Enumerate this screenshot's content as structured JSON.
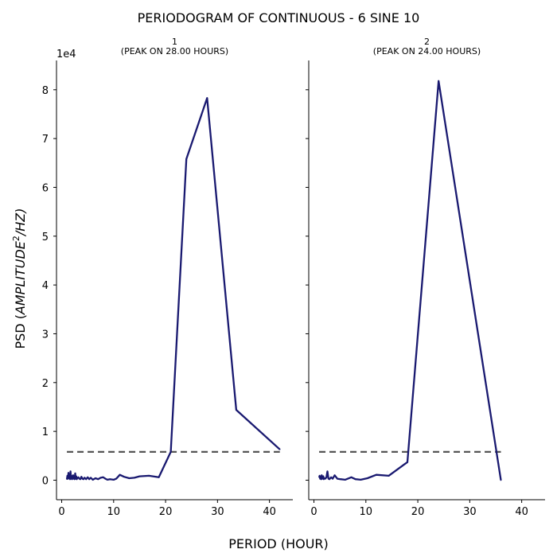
{
  "figure": {
    "title": "PERIODOGRAM OF CONTINUOUS - 6 SINE 10",
    "xlabel": "PERIOD (HOUR)",
    "ylabel_prefix": "PSD (",
    "ylabel_main": "AMPLITUDE",
    "ylabel_sup": "2",
    "ylabel_suffix": "/HZ)",
    "y_offset_label": "1e4"
  },
  "colors": {
    "line": "#191970",
    "threshold": "#555555",
    "axis": "#000000"
  },
  "chart_data": [
    {
      "type": "line",
      "title_line1": "1",
      "title_line2": "(PEAK ON 28.00 HOURS)",
      "xlim": [
        -1,
        44.5
      ],
      "ylim": [
        -4000,
        86000
      ],
      "xticks": [
        0,
        10,
        20,
        30,
        40
      ],
      "yticks": [
        0,
        10000,
        20000,
        30000,
        40000,
        50000,
        60000,
        70000,
        80000
      ],
      "ytick_labels": [
        "0",
        "1",
        "2",
        "3",
        "4",
        "5",
        "6",
        "7",
        "8"
      ],
      "show_yticklabels": true,
      "threshold": {
        "value": 5800,
        "x": [
          1,
          42
        ]
      },
      "x": [
        1.0,
        1.1,
        1.2,
        1.3,
        1.4,
        1.5,
        1.6,
        1.7,
        1.8,
        1.9,
        2.0,
        2.1,
        2.2,
        2.3,
        2.4,
        2.5,
        2.6,
        2.7,
        2.8,
        2.9,
        3.0,
        3.2,
        3.4,
        3.6,
        3.8,
        4.0,
        4.2,
        4.4,
        4.7,
        5.0,
        5.3,
        5.6,
        6.0,
        6.5,
        7.0,
        7.5,
        8.0,
        8.4,
        8.8,
        9.3,
        10.0,
        10.5,
        11.2,
        12.0,
        13.0,
        14.0,
        15.0,
        16.8,
        18.7,
        21.0,
        24.0,
        28.0,
        33.6,
        42.0
      ],
      "y": [
        200,
        900,
        300,
        1500,
        400,
        800,
        200,
        1800,
        300,
        600,
        200,
        900,
        1000,
        300,
        500,
        200,
        1400,
        300,
        800,
        200,
        400,
        600,
        300,
        200,
        700,
        300,
        200,
        500,
        200,
        600,
        200,
        500,
        100,
        400,
        200,
        500,
        600,
        300,
        100,
        200,
        100,
        300,
        1100,
        700,
        400,
        500,
        800,
        900,
        600,
        5800,
        65800,
        78300,
        14400,
        6300
      ]
    },
    {
      "type": "line",
      "title_line1": "2",
      "title_line2": "(PEAK ON 24.00 HOURS)",
      "xlim": [
        -1,
        44.5
      ],
      "ylim": [
        -4000,
        86000
      ],
      "xticks": [
        0,
        10,
        20,
        30,
        40
      ],
      "yticks": [
        0,
        10000,
        20000,
        30000,
        40000,
        50000,
        60000,
        70000,
        80000
      ],
      "ytick_labels": [
        "0",
        "1",
        "2",
        "3",
        "4",
        "5",
        "6",
        "7",
        "8"
      ],
      "show_yticklabels": false,
      "threshold": {
        "value": 5800,
        "x": [
          1,
          36
        ]
      },
      "x": [
        1.0,
        1.1,
        1.2,
        1.3,
        1.4,
        1.5,
        1.6,
        1.7,
        1.8,
        1.9,
        2.0,
        2.2,
        2.4,
        2.6,
        2.8,
        3.0,
        3.3,
        3.6,
        4.0,
        4.5,
        5.1,
        6.0,
        7.2,
        8.0,
        9.0,
        10.3,
        12.0,
        14.4,
        18.0,
        24.0,
        36.0
      ],
      "y": [
        600,
        900,
        300,
        700,
        200,
        1000,
        300,
        500,
        800,
        200,
        400,
        300,
        600,
        1800,
        300,
        200,
        600,
        300,
        1000,
        300,
        200,
        100,
        600,
        200,
        100,
        400,
        1100,
        900,
        3700,
        81800,
        0
      ]
    }
  ]
}
